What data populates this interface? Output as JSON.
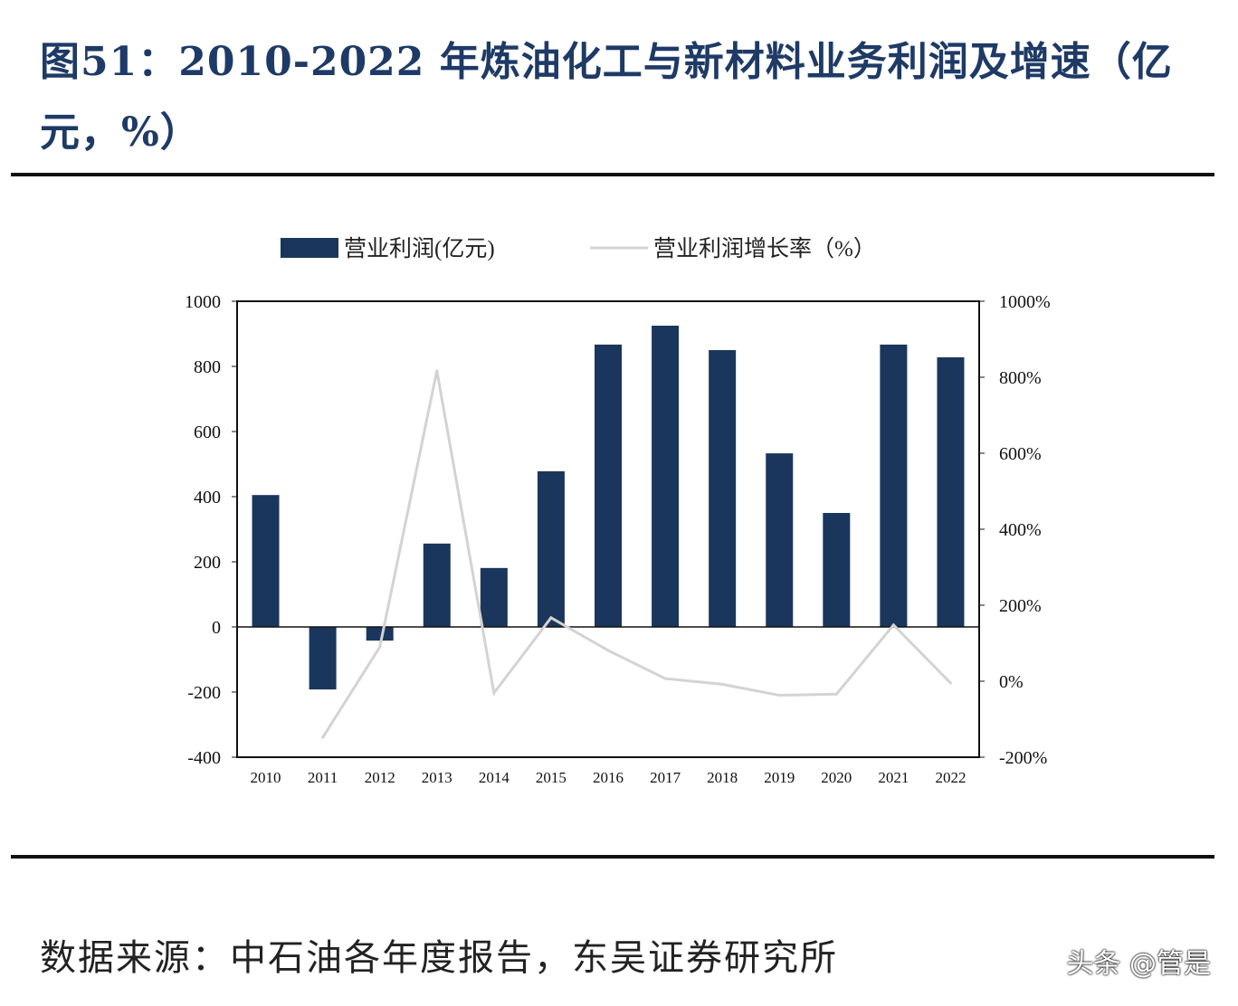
{
  "title": "图51：2010-2022 年炼油化工与新材料业务利润及增速（亿元，%）",
  "source": "数据来源：中石油各年度报告，东吴证券研究所",
  "watermark": "头条 @管是",
  "colors": {
    "bar": "#1b365d",
    "line": "#d3d3d3",
    "title": "#1e3a66"
  },
  "chart_data": {
    "type": "bar+line",
    "categories": [
      "2010",
      "2011",
      "2012",
      "2013",
      "2014",
      "2015",
      "2016",
      "2017",
      "2018",
      "2019",
      "2020",
      "2021",
      "2022"
    ],
    "series": [
      {
        "name": "营业利润(亿元)",
        "type": "bar",
        "axis": "left",
        "values": [
          405,
          -192,
          -42,
          256,
          181,
          478,
          867,
          925,
          850,
          533,
          350,
          867,
          828
        ]
      },
      {
        "name": "营业利润增长率（%）",
        "type": "line",
        "axis": "right",
        "values": [
          null,
          -148,
          90,
          817,
          -31,
          167,
          81,
          7,
          -8,
          -37,
          -34,
          148,
          -5
        ]
      }
    ],
    "ylim": [
      -400,
      1000
    ],
    "yticks": [
      "1000",
      "800",
      "600",
      "400",
      "200",
      "0",
      "-200",
      "-400"
    ],
    "y2lim": [
      -200,
      1000
    ],
    "y2ticks": [
      "1000%",
      "800%",
      "600%",
      "400%",
      "200%",
      "0%",
      "-200%"
    ],
    "legend": "top",
    "grid": false
  }
}
